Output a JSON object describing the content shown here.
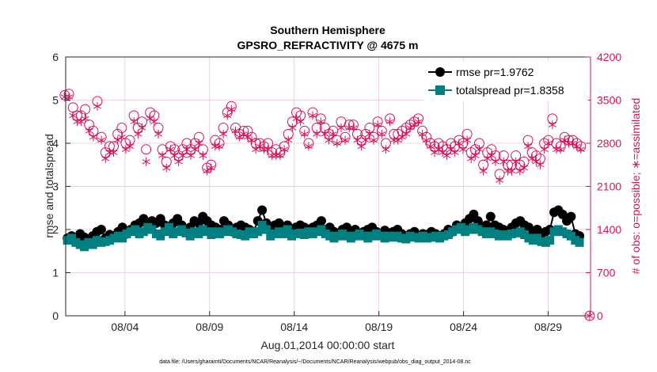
{
  "chart_data": {
    "type": "line",
    "title_line1": "Southern Hemisphere",
    "title_line2": "GPSRO_REFRACTIVITY @ 4675 m",
    "xlabel": "Aug.01,2014 00:00:00 start",
    "ylabel": "rmse and totalspread",
    "y2label": "# of obs: o=possible; ∗=assimilated",
    "ylim": [
      0,
      6
    ],
    "y2lim": [
      0,
      4200
    ],
    "xlim": [
      0.5,
      31.5
    ],
    "y_ticks": [
      0,
      1,
      2,
      3,
      4,
      5,
      6
    ],
    "y_tick_labels": [
      "0",
      "1",
      "2",
      "3",
      "4",
      "5",
      "6"
    ],
    "y2_ticks": [
      0,
      700,
      1400,
      2100,
      2800,
      3500,
      4200
    ],
    "y2_tick_labels": [
      "0",
      "700",
      "1400",
      "2100",
      "2800",
      "3500",
      "4200"
    ],
    "x_ticks": [
      4,
      9,
      14,
      19,
      24,
      29
    ],
    "x_tick_labels": [
      "08/04",
      "08/09",
      "08/14",
      "08/19",
      "08/24",
      "08/29"
    ],
    "grid": true,
    "legend_position": "top-right",
    "footnote": "data file: /Users/gharamti/Documents/NCAR/Reanalysis/~/Documents/NCAR/Reanalysis/webpub/obs_diag_output_2014-08.nc",
    "colors": {
      "rmse": "#000000",
      "spread": "#008080",
      "obs": "#d6125e",
      "grid": "#e8c8d4"
    },
    "series": [
      {
        "name": "rmse pr=1.9762",
        "axis": "left",
        "marker": "filled-circle",
        "values": [
          1.8,
          1.85,
          1.75,
          1.9,
          1.82,
          1.78,
          1.85,
          1.95,
          2.0,
          1.8,
          1.88,
          1.85,
          1.95,
          2.05,
          1.9,
          2.0,
          2.1,
          2.15,
          2.25,
          2.1,
          2.2,
          2.15,
          2.25,
          2.1,
          2.05,
          2.15,
          2.25,
          2.1,
          2.0,
          2.05,
          2.2,
          2.15,
          2.3,
          2.2,
          2.1,
          2.05,
          2.0,
          2.2,
          2.1,
          1.95,
          2.05,
          2.1,
          2.05,
          2.0,
          1.95,
          2.2,
          2.45,
          2.15,
          2.05,
          2.1,
          2.15,
          2.05,
          2.1,
          2.0,
          2.05,
          2.1,
          2.05,
          2.0,
          2.05,
          2.1,
          2.2,
          2.0,
          2.05,
          1.95,
          1.9,
          2.0,
          2.05,
          1.95,
          2.0,
          1.9,
          1.95,
          2.0,
          2.05,
          1.95,
          1.9,
          1.98,
          1.92,
          1.95,
          2.0,
          1.9,
          1.85,
          1.9,
          1.95,
          1.85,
          1.9,
          1.88,
          1.95,
          1.9,
          1.85,
          1.9,
          2.0,
          1.95,
          2.1,
          2.05,
          2.15,
          2.25,
          2.35,
          2.2,
          2.05,
          2.1,
          2.3,
          2.1,
          2.05,
          2.0,
          1.95,
          2.05,
          2.15,
          2.2,
          2.1,
          2.05,
          1.95,
          2.0,
          1.9,
          1.95,
          2.0,
          2.4,
          2.45,
          2.35,
          2.2,
          2.3,
          1.9,
          1.85
        ],
        "x_start": 0.6,
        "x_step": 0.25
      },
      {
        "name": "totalspread pr=1.8358",
        "axis": "left",
        "marker": "filled-square",
        "values": [
          1.75,
          1.8,
          1.7,
          1.65,
          1.6,
          1.7,
          1.65,
          1.75,
          1.7,
          1.72,
          1.75,
          1.8,
          1.85,
          1.8,
          1.9,
          1.95,
          2.0,
          1.9,
          1.95,
          2.05,
          2.0,
          1.9,
          1.85,
          1.95,
          2.05,
          1.9,
          1.95,
          2.0,
          1.92,
          1.85,
          1.95,
          1.9,
          2.0,
          1.95,
          1.88,
          1.95,
          1.9,
          1.95,
          2.0,
          1.95,
          1.9,
          1.88,
          1.85,
          1.95,
          1.9,
          1.95,
          2.1,
          2.0,
          1.85,
          1.9,
          1.95,
          1.9,
          2.0,
          1.85,
          1.9,
          1.92,
          1.88,
          1.95,
          1.9,
          1.95,
          2.0,
          1.9,
          1.85,
          1.8,
          1.85,
          1.9,
          1.85,
          1.8,
          1.85,
          1.9,
          1.85,
          1.8,
          1.85,
          1.9,
          1.85,
          1.8,
          1.85,
          1.82,
          1.85,
          1.8,
          1.78,
          1.85,
          1.82,
          1.8,
          1.85,
          1.8,
          1.82,
          1.85,
          1.8,
          1.85,
          1.88,
          1.95,
          2.0,
          2.05,
          1.95,
          2.0,
          2.05,
          2.0,
          1.95,
          1.9,
          1.95,
          1.9,
          1.85,
          1.88,
          1.85,
          1.9,
          1.92,
          1.95,
          1.88,
          1.8,
          1.75,
          1.8,
          1.72,
          1.7,
          1.75,
          1.95,
          2.0,
          1.95,
          1.9,
          1.85,
          1.75,
          1.7
        ],
        "x_start": 0.6,
        "x_step": 0.25
      },
      {
        "name": "possible",
        "axis": "right",
        "marker": "open-circle",
        "values": [
          3580,
          3600,
          3380,
          3250,
          3250,
          3350,
          3100,
          3000,
          3480,
          2900,
          2650,
          2750,
          2750,
          2950,
          3050,
          2800,
          2850,
          3250,
          3050,
          3150,
          2700,
          3300,
          3250,
          3050,
          2700,
          2500,
          2750,
          2700,
          2600,
          2700,
          2800,
          2700,
          2800,
          2900,
          2700,
          2400,
          2450,
          2850,
          2800,
          3050,
          3300,
          3400,
          3050,
          2950,
          3000,
          3000,
          2900,
          2800,
          2800,
          2750,
          2800,
          2650,
          2700,
          2650,
          2750,
          2950,
          3150,
          3300,
          3250,
          3000,
          2800,
          3300,
          3050,
          3200,
          3050,
          2950,
          3000,
          2850,
          3150,
          2900,
          3100,
          3100,
          2950,
          2850,
          2950,
          3050,
          2900,
          3150,
          3000,
          2800,
          3200,
          2950,
          2950,
          3000,
          3050,
          3100,
          3150,
          3200,
          3000,
          2900,
          2800,
          2750,
          2800,
          2750,
          2700,
          2800,
          2750,
          2850,
          2800,
          2950,
          2650,
          2700,
          2800,
          2450,
          2650,
          2700,
          2600,
          2300,
          2600,
          2450,
          2450,
          2600,
          2450,
          2500,
          2850,
          2650,
          2600,
          2550,
          2800,
          2850,
          3200,
          2800,
          2750,
          2900,
          2850,
          2850,
          2800,
          2750
        ],
        "x_start": 0.45,
        "x_step": 0.24
      },
      {
        "name": "assimilated",
        "axis": "right",
        "marker": "asterisk",
        "values": [
          3550,
          3550,
          3250,
          3150,
          3150,
          3200,
          3000,
          2900,
          3400,
          2850,
          2550,
          2650,
          2650,
          2850,
          2900,
          2700,
          2750,
          3150,
          2950,
          3050,
          2500,
          3200,
          3150,
          2950,
          2600,
          2400,
          2700,
          2600,
          2500,
          2600,
          2700,
          2600,
          2700,
          2800,
          2600,
          2350,
          2400,
          2750,
          2750,
          2950,
          3250,
          3350,
          3000,
          2900,
          2950,
          2900,
          2850,
          2700,
          2750,
          2700,
          2700,
          2600,
          2600,
          2600,
          2700,
          2850,
          3050,
          3200,
          3150,
          2950,
          2750,
          3250,
          2950,
          3150,
          2950,
          2850,
          2950,
          2800,
          3050,
          2850,
          3050,
          3050,
          2850,
          2750,
          2850,
          2950,
          2850,
          3100,
          2950,
          2700,
          3150,
          2850,
          2850,
          2900,
          2950,
          3050,
          3100,
          3150,
          2950,
          2850,
          2750,
          2650,
          2700,
          2650,
          2600,
          2700,
          2650,
          2800,
          2700,
          2850,
          2550,
          2600,
          2700,
          2350,
          2550,
          2600,
          2500,
          2200,
          2500,
          2350,
          2350,
          2500,
          2350,
          2400,
          2750,
          2550,
          2500,
          2450,
          2700,
          2800,
          3100,
          2700,
          2700,
          2850,
          2800,
          2800,
          2750,
          2700
        ],
        "x_start": 0.45,
        "x_step": 0.24
      }
    ],
    "extra_marker": {
      "series": "possible",
      "x": 31.45,
      "value": 0
    }
  }
}
